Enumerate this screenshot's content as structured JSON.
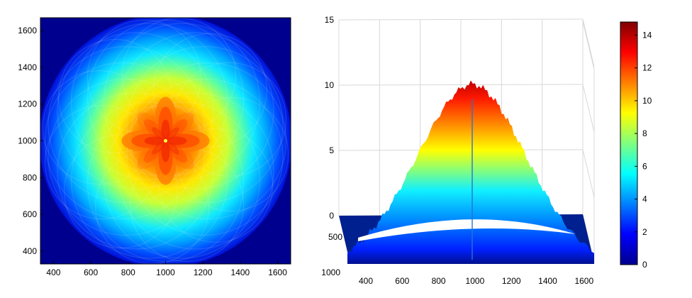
{
  "chart_data": [
    {
      "type": "heatmap",
      "view": "2d",
      "x_ticks": [
        400,
        600,
        800,
        1000,
        1200,
        1400,
        1600
      ],
      "y_ticks": [
        400,
        600,
        800,
        1000,
        1200,
        1400,
        1600
      ],
      "xlim": [
        330,
        1670
      ],
      "ylim": [
        330,
        1670
      ],
      "center": [
        1000,
        1000
      ],
      "disk_radius": 680,
      "peak_value": 14.5,
      "background_value": 0,
      "grid": false
    },
    {
      "type": "surface",
      "view": "3d",
      "x_ticks": [
        400,
        600,
        800,
        1000,
        1200,
        1400,
        1600
      ],
      "y_ticks": [
        500,
        1000
      ],
      "z_ticks": [
        0,
        5,
        10,
        15
      ],
      "zlim": [
        0,
        15
      ],
      "peak": 14.5,
      "grid": true
    }
  ],
  "colorbar": {
    "ticks": [
      0,
      2,
      4,
      6,
      8,
      10,
      12,
      14
    ],
    "range": [
      0,
      14.8
    ],
    "colormap": "jet"
  }
}
